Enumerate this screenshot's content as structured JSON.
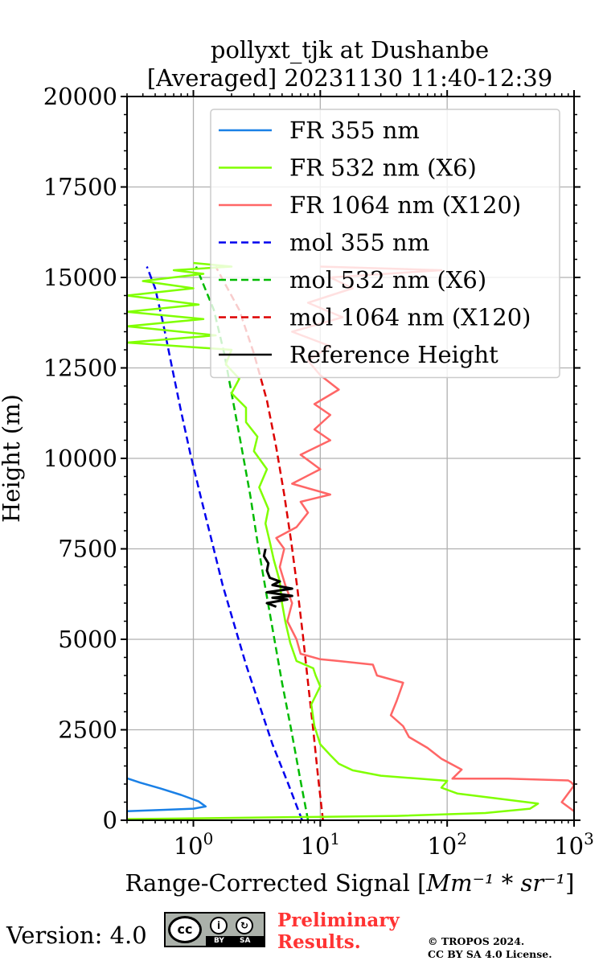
{
  "chart_data": {
    "type": "line",
    "title": "pollyxt_tjk at Dushanbe",
    "subtitle": "[Averaged] 20231130 11:40-12:39",
    "xlabel": "Range-Corrected Signal [",
    "xlabel_unit": "Mm⁻¹ * sr⁻¹",
    "xlabel_end": "]",
    "ylabel": "Height (m)",
    "xscale": "log",
    "xlim": [
      0.3,
      1000
    ],
    "ylim": [
      0,
      20000
    ],
    "grid": true,
    "legend_position": "top-right",
    "x_ticks": [
      {
        "base": "10",
        "exp": "0",
        "value": 1
      },
      {
        "base": "10",
        "exp": "1",
        "value": 10
      },
      {
        "base": "10",
        "exp": "2",
        "value": 100
      },
      {
        "base": "10",
        "exp": "3",
        "value": 1000
      }
    ],
    "y_ticks": [
      "0",
      "2500",
      "5000",
      "7500",
      "10000",
      "12500",
      "15000",
      "17500",
      "20000"
    ],
    "series": [
      {
        "name": "FR 355 nm",
        "color": "#1a80e6",
        "style": "solid",
        "points": [
          [
            0.3,
            250
          ],
          [
            0.6,
            290
          ],
          [
            1.0,
            320
          ],
          [
            1.25,
            380
          ],
          [
            1.1,
            520
          ],
          [
            0.8,
            700
          ],
          [
            0.55,
            880
          ],
          [
            0.38,
            1040
          ],
          [
            0.3,
            1160
          ]
        ]
      },
      {
        "name": "FR 532 nm (X6)",
        "color": "#80ff00",
        "style": "solid",
        "points": [
          [
            0.3,
            30
          ],
          [
            40,
            120
          ],
          [
            200,
            200
          ],
          [
            450,
            320
          ],
          [
            520,
            460
          ],
          [
            250,
            600
          ],
          [
            120,
            740
          ],
          [
            90,
            900
          ],
          [
            100,
            1090
          ],
          [
            60,
            1150
          ],
          [
            30,
            1230
          ],
          [
            18,
            1380
          ],
          [
            14,
            1560
          ],
          [
            12,
            1800
          ],
          [
            10,
            2100
          ],
          [
            9,
            2600
          ],
          [
            8.5,
            3200
          ],
          [
            10,
            3700
          ],
          [
            9.2,
            4000
          ],
          [
            8.8,
            4200
          ],
          [
            6.5,
            4400
          ],
          [
            5.8,
            4900
          ],
          [
            5.3,
            5500
          ],
          [
            5.0,
            6000
          ],
          [
            4.8,
            6600
          ],
          [
            4.3,
            7200
          ],
          [
            4.0,
            7700
          ],
          [
            3.7,
            8200
          ],
          [
            3.9,
            8600
          ],
          [
            3.3,
            9200
          ],
          [
            3.8,
            9700
          ],
          [
            3.0,
            10200
          ],
          [
            3.2,
            10600
          ],
          [
            2.6,
            11000
          ],
          [
            2.6,
            11400
          ],
          [
            2.0,
            11800
          ],
          [
            2.3,
            12200
          ],
          [
            1.8,
            12600
          ],
          [
            2.0,
            13000
          ],
          [
            0.3,
            13200
          ],
          [
            1.5,
            13400
          ],
          [
            0.3,
            13650
          ],
          [
            1.2,
            13850
          ],
          [
            0.3,
            14050
          ],
          [
            1.1,
            14250
          ],
          [
            0.3,
            14500
          ],
          [
            1.0,
            14700
          ],
          [
            0.4,
            14900
          ],
          [
            1.2,
            15100
          ],
          [
            0.7,
            15200
          ],
          [
            2.0,
            15300
          ],
          [
            1.0,
            15400
          ]
        ]
      },
      {
        "name": "FR 1064 nm (X120)",
        "color": "#ff6666",
        "style": "solid",
        "points": [
          [
            1000,
            250
          ],
          [
            800,
            500
          ],
          [
            1000,
            960
          ],
          [
            950,
            1050
          ],
          [
            900,
            1100
          ],
          [
            300,
            1150
          ],
          [
            110,
            1150
          ],
          [
            130,
            1400
          ],
          [
            90,
            1700
          ],
          [
            70,
            2000
          ],
          [
            50,
            2300
          ],
          [
            45,
            2600
          ],
          [
            36,
            2900
          ],
          [
            40,
            3300
          ],
          [
            45,
            3800
          ],
          [
            28,
            4000
          ],
          [
            26,
            4300
          ],
          [
            14,
            4400
          ],
          [
            10,
            4450
          ],
          [
            7,
            4600
          ],
          [
            6.5,
            5000
          ],
          [
            5.5,
            5500
          ],
          [
            6.0,
            6000
          ],
          [
            5.3,
            6500
          ],
          [
            4.8,
            7000
          ],
          [
            5.2,
            7500
          ],
          [
            4.5,
            7800
          ],
          [
            6.5,
            8100
          ],
          [
            8.0,
            8500
          ],
          [
            7.0,
            8800
          ],
          [
            12,
            9000
          ],
          [
            6.0,
            9300
          ],
          [
            10,
            9700
          ],
          [
            7.0,
            10100
          ],
          [
            12,
            10500
          ],
          [
            9.0,
            10800
          ],
          [
            12,
            11200
          ],
          [
            9.0,
            11500
          ],
          [
            14,
            11900
          ],
          [
            10,
            12300
          ],
          [
            8.0,
            12700
          ],
          [
            12,
            13100
          ],
          [
            6.0,
            13500
          ],
          [
            15,
            13900
          ],
          [
            8.0,
            14300
          ],
          [
            18,
            14700
          ],
          [
            12,
            15000
          ],
          [
            90,
            15200
          ],
          [
            10,
            15300
          ]
        ]
      },
      {
        "name": "mol 355 nm",
        "color": "#0000ee",
        "style": "dashed",
        "points": [
          [
            7.2,
            0
          ],
          [
            5.6,
            1000
          ],
          [
            4.2,
            2100
          ],
          [
            3.3,
            3200
          ],
          [
            2.6,
            4300
          ],
          [
            2.1,
            5400
          ],
          [
            1.7,
            6500
          ],
          [
            1.4,
            7700
          ],
          [
            1.15,
            8900
          ],
          [
            0.95,
            10100
          ],
          [
            0.8,
            11300
          ],
          [
            0.68,
            12500
          ],
          [
            0.58,
            13700
          ],
          [
            0.5,
            14700
          ],
          [
            0.43,
            15300
          ]
        ]
      },
      {
        "name": "mol 532 nm (X6)",
        "color": "#00bb00",
        "style": "dashed",
        "points": [
          [
            8.0,
            0
          ],
          [
            6.9,
            1200
          ],
          [
            5.9,
            2500
          ],
          [
            5.0,
            3800
          ],
          [
            4.3,
            5100
          ],
          [
            3.7,
            6400
          ],
          [
            3.2,
            7700
          ],
          [
            2.8,
            9000
          ],
          [
            2.4,
            10300
          ],
          [
            2.05,
            11600
          ],
          [
            1.75,
            12900
          ],
          [
            1.45,
            14100
          ],
          [
            1.05,
            15300
          ]
        ]
      },
      {
        "name": "mol 1064 nm (X120)",
        "color": "#dd0000",
        "style": "dashed",
        "points": [
          [
            10.5,
            0
          ],
          [
            9.6,
            1200
          ],
          [
            8.8,
            2500
          ],
          [
            8.0,
            3800
          ],
          [
            7.3,
            5100
          ],
          [
            6.6,
            6400
          ],
          [
            5.9,
            7700
          ],
          [
            5.2,
            9000
          ],
          [
            4.5,
            10300
          ],
          [
            3.8,
            11600
          ],
          [
            3.0,
            12900
          ],
          [
            2.3,
            14100
          ],
          [
            1.5,
            15300
          ]
        ]
      },
      {
        "name": "Reference Height",
        "color": "#000000",
        "style": "solid",
        "points": [
          [
            4.5,
            5900
          ],
          [
            3.8,
            6000
          ],
          [
            5.5,
            6100
          ],
          [
            4.2,
            6150
          ],
          [
            6.0,
            6200
          ],
          [
            3.8,
            6300
          ],
          [
            6.0,
            6400
          ],
          [
            4.2,
            6500
          ],
          [
            4.8,
            6600
          ],
          [
            4.0,
            6700
          ],
          [
            3.8,
            6900
          ],
          [
            3.9,
            7100
          ],
          [
            3.6,
            7300
          ],
          [
            3.7,
            7500
          ]
        ]
      }
    ]
  },
  "footer": {
    "version_label": "Version: 4.0",
    "license_cc": "cc",
    "license_by": "BY",
    "license_sa": "SA",
    "prelim_line1": "Preliminary",
    "prelim_line2": "Results.",
    "copyright_line1": "© TROPOS 2024.",
    "copyright_line2": "CC BY SA 4.0 License."
  }
}
